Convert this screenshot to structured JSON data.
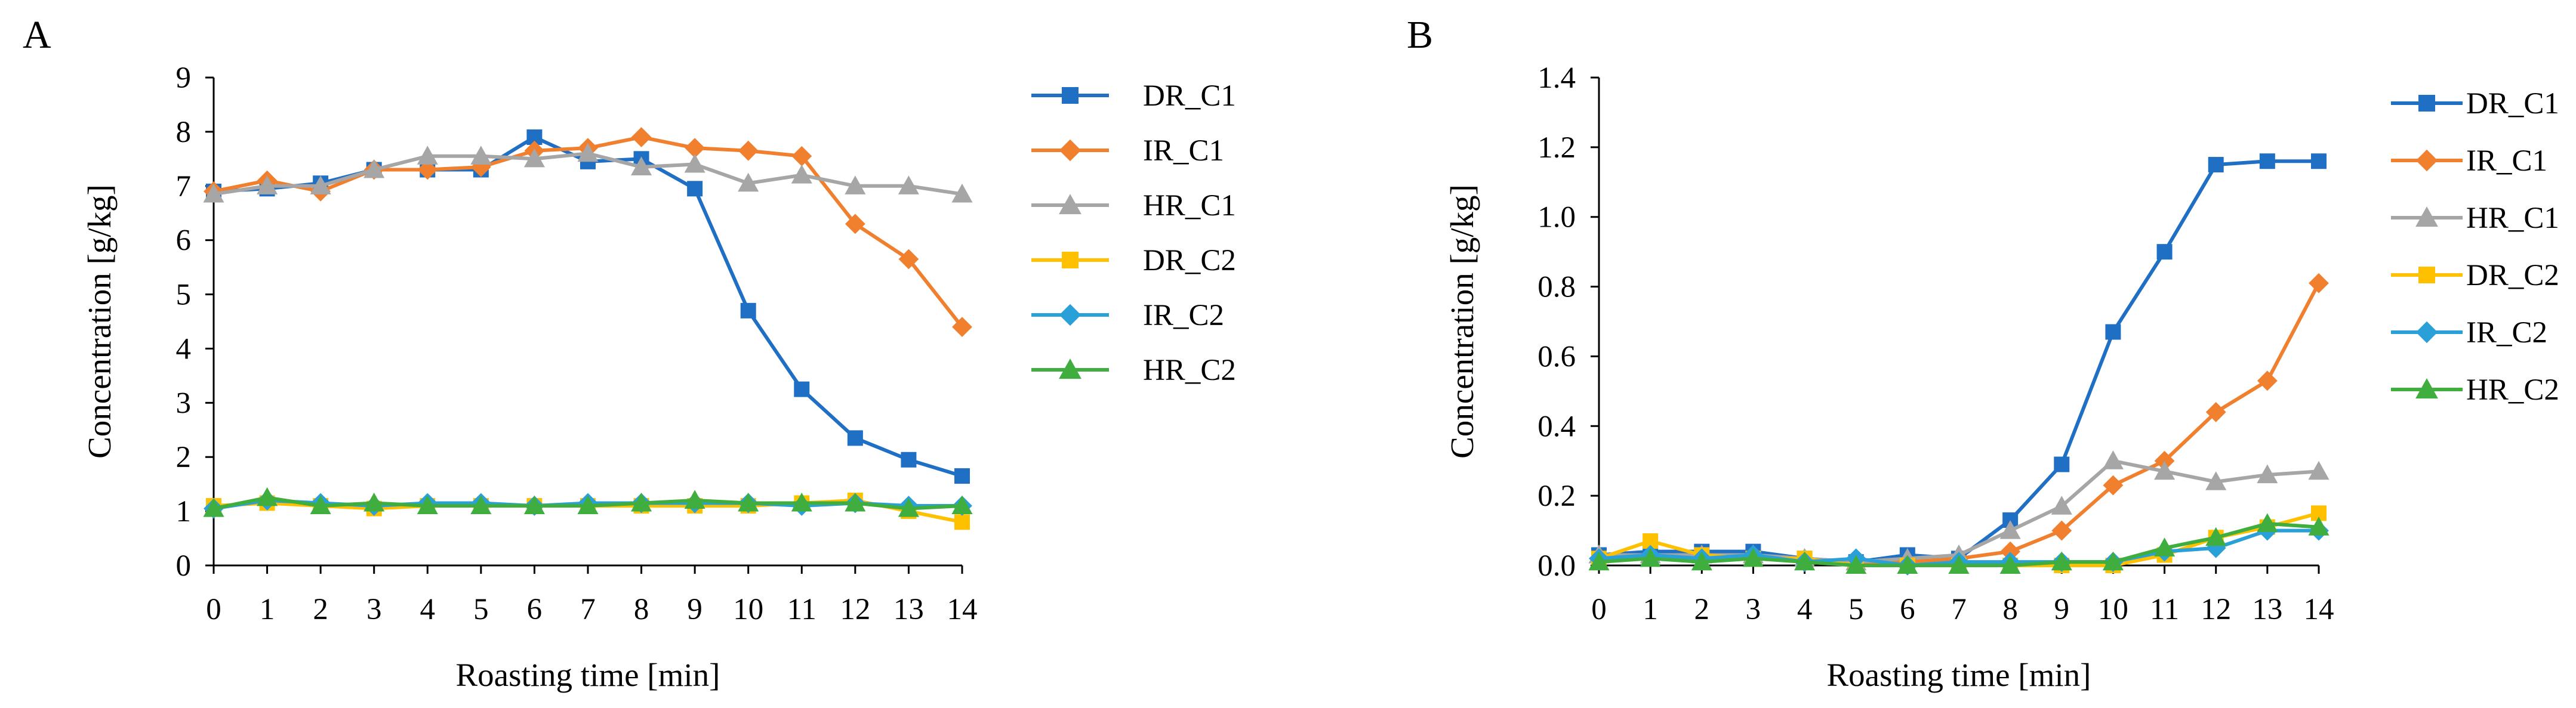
{
  "chart_data": [
    {
      "panel": "A",
      "type": "line",
      "xlabel": "Roasting time [min]",
      "ylabel": "Concentration [g/kg]",
      "xlim": [
        0,
        14
      ],
      "ylim": [
        0,
        9
      ],
      "x": [
        0,
        1,
        2,
        3,
        4,
        5,
        6,
        7,
        8,
        9,
        10,
        11,
        12,
        13,
        14
      ],
      "x_ticks": [
        "0",
        "1",
        "2",
        "3",
        "4",
        "5",
        "6",
        "7",
        "8",
        "9",
        "10",
        "11",
        "12",
        "13",
        "14"
      ],
      "y_ticks": [
        "0",
        "1",
        "2",
        "3",
        "4",
        "5",
        "6",
        "7",
        "8",
        "9"
      ],
      "y_tick_values": [
        0,
        1,
        2,
        3,
        4,
        5,
        6,
        7,
        8,
        9
      ],
      "legend_position": "right",
      "series": [
        {
          "name": "DR_C1",
          "color": "#1f6fc5",
          "marker": "square",
          "values": [
            6.9,
            6.95,
            7.05,
            7.3,
            7.3,
            7.3,
            7.9,
            7.45,
            7.5,
            6.95,
            4.7,
            3.25,
            2.35,
            1.95,
            1.65
          ]
        },
        {
          "name": "IR_C1",
          "color": "#f07f2e",
          "marker": "diamond",
          "values": [
            6.9,
            7.1,
            6.9,
            7.3,
            7.3,
            7.35,
            7.65,
            7.7,
            7.9,
            7.7,
            7.65,
            7.55,
            6.3,
            5.65,
            4.4
          ]
        },
        {
          "name": "HR_C1",
          "color": "#a6a6a6",
          "marker": "triangle",
          "values": [
            6.85,
            7.0,
            7.0,
            7.3,
            7.55,
            7.55,
            7.5,
            7.6,
            7.35,
            7.4,
            7.05,
            7.2,
            7.0,
            7.0,
            6.85
          ]
        },
        {
          "name": "DR_C2",
          "color": "#ffc000",
          "marker": "square",
          "values": [
            1.1,
            1.15,
            1.1,
            1.05,
            1.1,
            1.1,
            1.1,
            1.1,
            1.1,
            1.1,
            1.1,
            1.15,
            1.2,
            1.0,
            0.8
          ]
        },
        {
          "name": "IR_C2",
          "color": "#2aa0d8",
          "marker": "diamond",
          "values": [
            1.05,
            1.2,
            1.15,
            1.1,
            1.15,
            1.15,
            1.1,
            1.15,
            1.15,
            1.15,
            1.15,
            1.1,
            1.15,
            1.1,
            1.1
          ]
        },
        {
          "name": "HR_C2",
          "color": "#3fae3f",
          "marker": "triangle",
          "values": [
            1.05,
            1.25,
            1.1,
            1.15,
            1.1,
            1.1,
            1.1,
            1.1,
            1.15,
            1.2,
            1.15,
            1.15,
            1.15,
            1.05,
            1.1
          ]
        }
      ]
    },
    {
      "panel": "B",
      "type": "line",
      "xlabel": "Roasting time [min]",
      "ylabel": "Concentration [g/kg]",
      "xlim": [
        0,
        14
      ],
      "ylim": [
        0,
        1.4
      ],
      "x": [
        0,
        1,
        2,
        3,
        4,
        5,
        6,
        7,
        8,
        9,
        10,
        11,
        12,
        13,
        14
      ],
      "x_ticks": [
        "0",
        "1",
        "2",
        "3",
        "4",
        "5",
        "6",
        "7",
        "8",
        "9",
        "10",
        "11",
        "12",
        "13",
        "14"
      ],
      "y_ticks": [
        "0.0",
        "0.2",
        "0.4",
        "0.6",
        "0.8",
        "1.0",
        "1.2",
        "1.4"
      ],
      "y_tick_values": [
        0,
        0.2,
        0.4,
        0.6,
        0.8,
        1.0,
        1.2,
        1.4
      ],
      "legend_position": "right",
      "series": [
        {
          "name": "DR_C1",
          "color": "#1f6fc5",
          "marker": "square",
          "values": [
            0.03,
            0.04,
            0.04,
            0.04,
            0.02,
            0.01,
            0.03,
            0.02,
            0.13,
            0.29,
            0.67,
            0.9,
            1.15,
            1.16,
            1.16
          ]
        },
        {
          "name": "IR_C1",
          "color": "#f07f2e",
          "marker": "diamond",
          "values": [
            0.02,
            0.03,
            0.02,
            0.03,
            0.01,
            0.01,
            0.01,
            0.02,
            0.04,
            0.1,
            0.23,
            0.3,
            0.44,
            0.53,
            0.81
          ]
        },
        {
          "name": "HR_C1",
          "color": "#a6a6a6",
          "marker": "triangle",
          "values": [
            0.03,
            0.03,
            0.03,
            0.03,
            0.02,
            0.01,
            0.02,
            0.03,
            0.1,
            0.17,
            0.3,
            0.27,
            0.24,
            0.26,
            0.27
          ]
        },
        {
          "name": "DR_C2",
          "color": "#ffc000",
          "marker": "square",
          "values": [
            0.02,
            0.07,
            0.03,
            0.02,
            0.02,
            0.0,
            0.0,
            0.0,
            0.0,
            0.0,
            0.0,
            0.03,
            0.08,
            0.11,
            0.15
          ]
        },
        {
          "name": "IR_C2",
          "color": "#2aa0d8",
          "marker": "diamond",
          "values": [
            0.02,
            0.03,
            0.02,
            0.03,
            0.01,
            0.02,
            0.0,
            0.01,
            0.01,
            0.01,
            0.01,
            0.04,
            0.05,
            0.1,
            0.1
          ]
        },
        {
          "name": "HR_C2",
          "color": "#3fae3f",
          "marker": "triangle",
          "values": [
            0.01,
            0.02,
            0.01,
            0.02,
            0.01,
            0.0,
            0.0,
            0.0,
            0.0,
            0.01,
            0.01,
            0.05,
            0.08,
            0.12,
            0.11
          ]
        }
      ]
    }
  ]
}
